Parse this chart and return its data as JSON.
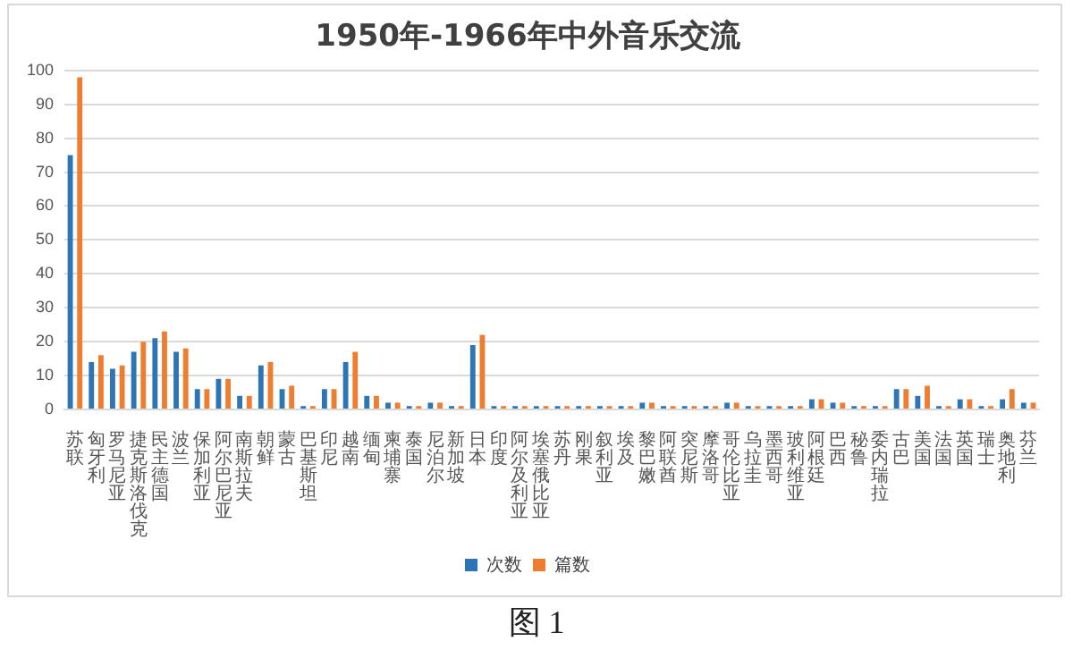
{
  "chart_data": {
    "type": "bar",
    "title": "1950年-1966年中外音乐交流",
    "categories": [
      "苏联",
      "匈牙利",
      "罗马尼亚",
      "捷克斯洛伐克",
      "民主德国",
      "波兰",
      "保加利亚",
      "阿尔巴尼亚",
      "南斯拉夫",
      "朝鲜",
      "蒙古",
      "巴基斯坦",
      "印尼",
      "越南",
      "缅甸",
      "柬埔寨",
      "泰国",
      "尼泊尔",
      "新加坡",
      "日本",
      "印度",
      "阿尔及利亚",
      "埃塞俄比亚",
      "苏丹",
      "刚果",
      "叙利亚",
      "埃及",
      "黎巴嫩",
      "阿联酋",
      "突尼斯",
      "摩洛哥",
      "哥伦比亚",
      "乌拉圭",
      "墨西哥",
      "玻利维亚",
      "阿根廷",
      "巴西",
      "秘鲁",
      "委内瑞拉",
      "古巴",
      "美国",
      "法国",
      "英国",
      "瑞士",
      "奥地利",
      "芬兰"
    ],
    "series": [
      {
        "name": "次数",
        "color": "#2e75b6",
        "values": [
          75,
          14,
          12,
          17,
          21,
          17,
          6,
          9,
          4,
          13,
          6,
          1,
          6,
          14,
          4,
          2,
          1,
          2,
          1,
          19,
          1,
          1,
          1,
          1,
          1,
          1,
          1,
          2,
          1,
          1,
          1,
          2,
          1,
          1,
          1,
          3,
          2,
          1,
          1,
          6,
          4,
          1,
          3,
          1,
          3,
          2
        ]
      },
      {
        "name": "篇数",
        "color": "#ed7d31",
        "values": [
          98,
          16,
          13,
          20,
          23,
          18,
          6,
          9,
          4,
          14,
          7,
          1,
          6,
          17,
          4,
          2,
          1,
          2,
          1,
          22,
          1,
          1,
          1,
          1,
          1,
          1,
          1,
          2,
          1,
          1,
          1,
          2,
          1,
          1,
          1,
          3,
          2,
          1,
          1,
          6,
          7,
          1,
          3,
          1,
          6,
          2
        ]
      }
    ],
    "ylim": [
      0,
      100
    ],
    "yticks": [
      0,
      10,
      20,
      30,
      40,
      50,
      60,
      70,
      80,
      90,
      100
    ],
    "grid": "y",
    "legend": "bottom",
    "annotations": [
      "图 1"
    ]
  }
}
